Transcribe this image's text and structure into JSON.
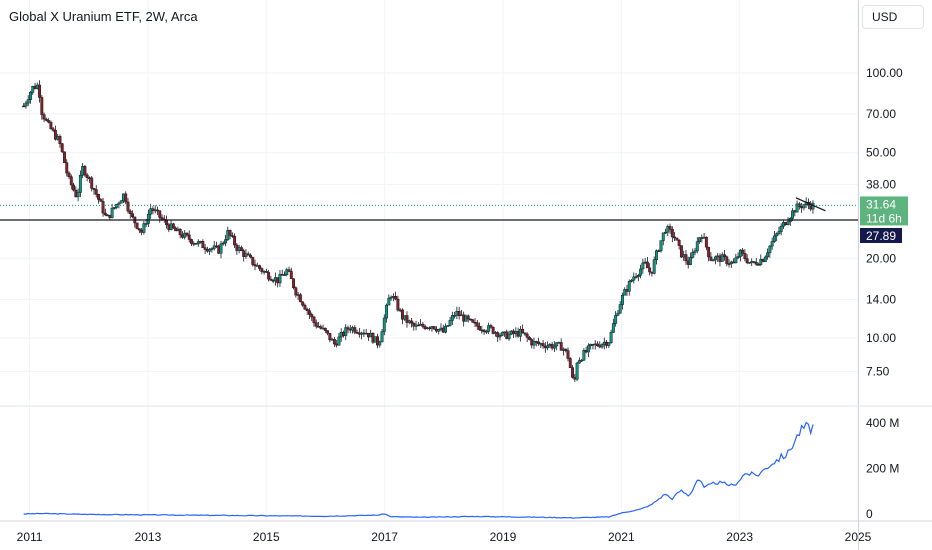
{
  "header": {
    "title": "Global X Uranium ETF, 2W, Arca"
  },
  "currency_button": {
    "label": "USD"
  },
  "colors": {
    "up": "#089981",
    "down": "#8c1f22",
    "volume_line": "#2962ff",
    "price_badge": "#5eb47e",
    "level_badge": "#131a4b"
  },
  "current_price": {
    "value": "31.64",
    "countdown": "11d 6h"
  },
  "horizontal_level": {
    "value": "27.89"
  },
  "chart_data": {
    "type": "candlestick",
    "title": "Global X Uranium ETF, 2W, Arca",
    "y_scale": "log",
    "x_range": [
      2010.5,
      2025.0
    ],
    "y_range": [
      5.6,
      145
    ],
    "x_tick_labels": [
      "2011",
      "2013",
      "2015",
      "2017",
      "2019",
      "2021",
      "2023",
      "2025"
    ],
    "y_tick_labels": [
      "100.00",
      "70.00",
      "50.00",
      "38.00",
      "20.00",
      "14.00",
      "10.00",
      "7.50"
    ],
    "price_keypoints": [
      [
        2010.9,
        75
      ],
      [
        2011.05,
        88
      ],
      [
        2011.15,
        90
      ],
      [
        2011.2,
        72
      ],
      [
        2011.3,
        64
      ],
      [
        2011.5,
        55
      ],
      [
        2011.65,
        40
      ],
      [
        2011.8,
        34
      ],
      [
        2011.9,
        44
      ],
      [
        2012.0,
        40
      ],
      [
        2012.2,
        32
      ],
      [
        2012.3,
        28
      ],
      [
        2012.6,
        35
      ],
      [
        2012.7,
        29
      ],
      [
        2012.9,
        25
      ],
      [
        2013.05,
        31
      ],
      [
        2013.3,
        27
      ],
      [
        2013.5,
        25
      ],
      [
        2013.8,
        23
      ],
      [
        2014.0,
        22
      ],
      [
        2014.2,
        21.5
      ],
      [
        2014.35,
        25
      ],
      [
        2014.5,
        22
      ],
      [
        2014.8,
        19
      ],
      [
        2015.0,
        17.5
      ],
      [
        2015.2,
        16.5
      ],
      [
        2015.35,
        18
      ],
      [
        2015.5,
        15
      ],
      [
        2015.8,
        11.5
      ],
      [
        2016.0,
        10.5
      ],
      [
        2016.15,
        9.5
      ],
      [
        2016.4,
        11
      ],
      [
        2016.7,
        10.5
      ],
      [
        2016.9,
        9.5
      ],
      [
        2017.0,
        12
      ],
      [
        2017.1,
        14.8
      ],
      [
        2017.3,
        12
      ],
      [
        2017.5,
        11
      ],
      [
        2017.8,
        11.2
      ],
      [
        2018.0,
        10.5
      ],
      [
        2018.2,
        12.5
      ],
      [
        2018.5,
        11.2
      ],
      [
        2018.8,
        10.8
      ],
      [
        2019.0,
        10.2
      ],
      [
        2019.3,
        10.5
      ],
      [
        2019.5,
        9.6
      ],
      [
        2019.8,
        9.4
      ],
      [
        2020.0,
        9.3
      ],
      [
        2020.1,
        8.5
      ],
      [
        2020.2,
        6.5
      ],
      [
        2020.25,
        8.2
      ],
      [
        2020.5,
        9.3
      ],
      [
        2020.8,
        9.8
      ],
      [
        2020.9,
        12
      ],
      [
        2021.0,
        14
      ],
      [
        2021.2,
        17
      ],
      [
        2021.4,
        19
      ],
      [
        2021.5,
        17.5
      ],
      [
        2021.75,
        26
      ],
      [
        2021.9,
        24
      ],
      [
        2022.0,
        21
      ],
      [
        2022.15,
        19
      ],
      [
        2022.35,
        25
      ],
      [
        2022.5,
        20
      ],
      [
        2022.7,
        20
      ],
      [
        2022.9,
        19
      ],
      [
        2023.0,
        21
      ],
      [
        2023.2,
        19
      ],
      [
        2023.4,
        20
      ],
      [
        2023.6,
        24
      ],
      [
        2023.75,
        27
      ],
      [
        2023.95,
        31
      ],
      [
        2024.1,
        32
      ],
      [
        2024.25,
        31.6
      ]
    ],
    "volume_axis_labels": [
      "400 M",
      "200 M",
      "0"
    ],
    "volume_keypoints": [
      [
        2010.9,
        1
      ],
      [
        2011.2,
        3
      ],
      [
        2012.0,
        -1
      ],
      [
        2013.5,
        -4
      ],
      [
        2014.5,
        -6
      ],
      [
        2016.0,
        -9
      ],
      [
        2016.9,
        -4
      ],
      [
        2017.0,
        2
      ],
      [
        2017.1,
        -11
      ],
      [
        2017.6,
        -14
      ],
      [
        2018.5,
        -10
      ],
      [
        2019.5,
        -13
      ],
      [
        2020.2,
        -16
      ],
      [
        2020.8,
        -12
      ],
      [
        2021.0,
        5
      ],
      [
        2021.3,
        20
      ],
      [
        2021.5,
        40
      ],
      [
        2021.75,
        90
      ],
      [
        2021.85,
        65
      ],
      [
        2022.0,
        105
      ],
      [
        2022.15,
        80
      ],
      [
        2022.3,
        160
      ],
      [
        2022.4,
        115
      ],
      [
        2022.6,
        140
      ],
      [
        2022.9,
        125
      ],
      [
        2023.1,
        180
      ],
      [
        2023.3,
        170
      ],
      [
        2023.5,
        215
      ],
      [
        2023.7,
        250
      ],
      [
        2023.8,
        260
      ],
      [
        2024.0,
        355
      ],
      [
        2024.1,
        385
      ],
      [
        2024.2,
        375
      ],
      [
        2024.25,
        390
      ]
    ]
  }
}
